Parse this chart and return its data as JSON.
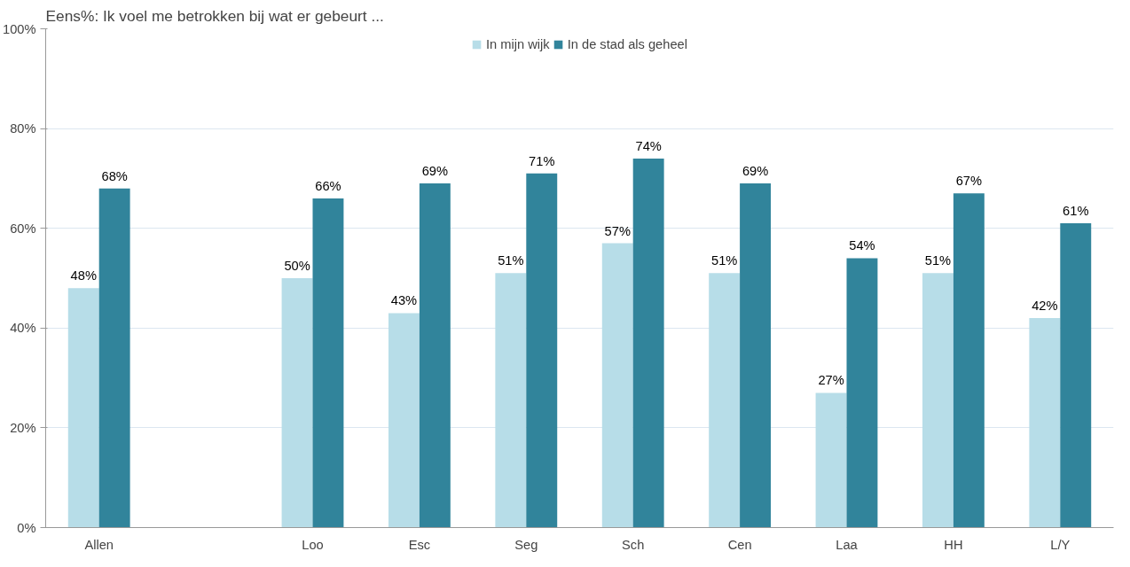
{
  "chart_data": {
    "type": "bar",
    "title": "Eens%: Ik voel me betrokken bij wat er gebeurt ...",
    "categories": [
      "Allen",
      null,
      "Loo",
      "Esc",
      "Seg",
      "Sch",
      "Cen",
      "Laa",
      "HH",
      "L/Y"
    ],
    "series": [
      {
        "name": "In mijn wijk",
        "color": "#b7dde8",
        "values": [
          48,
          null,
          50,
          43,
          51,
          57,
          51,
          27,
          51,
          42
        ],
        "value_labels": [
          "48%",
          null,
          "50%",
          "43%",
          "51%",
          "57%",
          "51%",
          "27%",
          "51%",
          "42%"
        ]
      },
      {
        "name": "In de stad als geheel",
        "color": "#31849b",
        "values": [
          68,
          null,
          66,
          69,
          71,
          74,
          69,
          54,
          67,
          61
        ],
        "value_labels": [
          "68%",
          null,
          "66%",
          "69%",
          "71%",
          "74%",
          "69%",
          "54%",
          "67%",
          "61%"
        ]
      }
    ],
    "ylim": [
      0,
      100
    ],
    "yticks": [
      {
        "value": 0,
        "label": "0%"
      },
      {
        "value": 20,
        "label": "20%"
      },
      {
        "value": 40,
        "label": "40%"
      },
      {
        "value": 60,
        "label": "60%"
      },
      {
        "value": 80,
        "label": "80%"
      },
      {
        "value": 100,
        "label": "100%"
      }
    ],
    "grid": "y",
    "legend": "top"
  }
}
